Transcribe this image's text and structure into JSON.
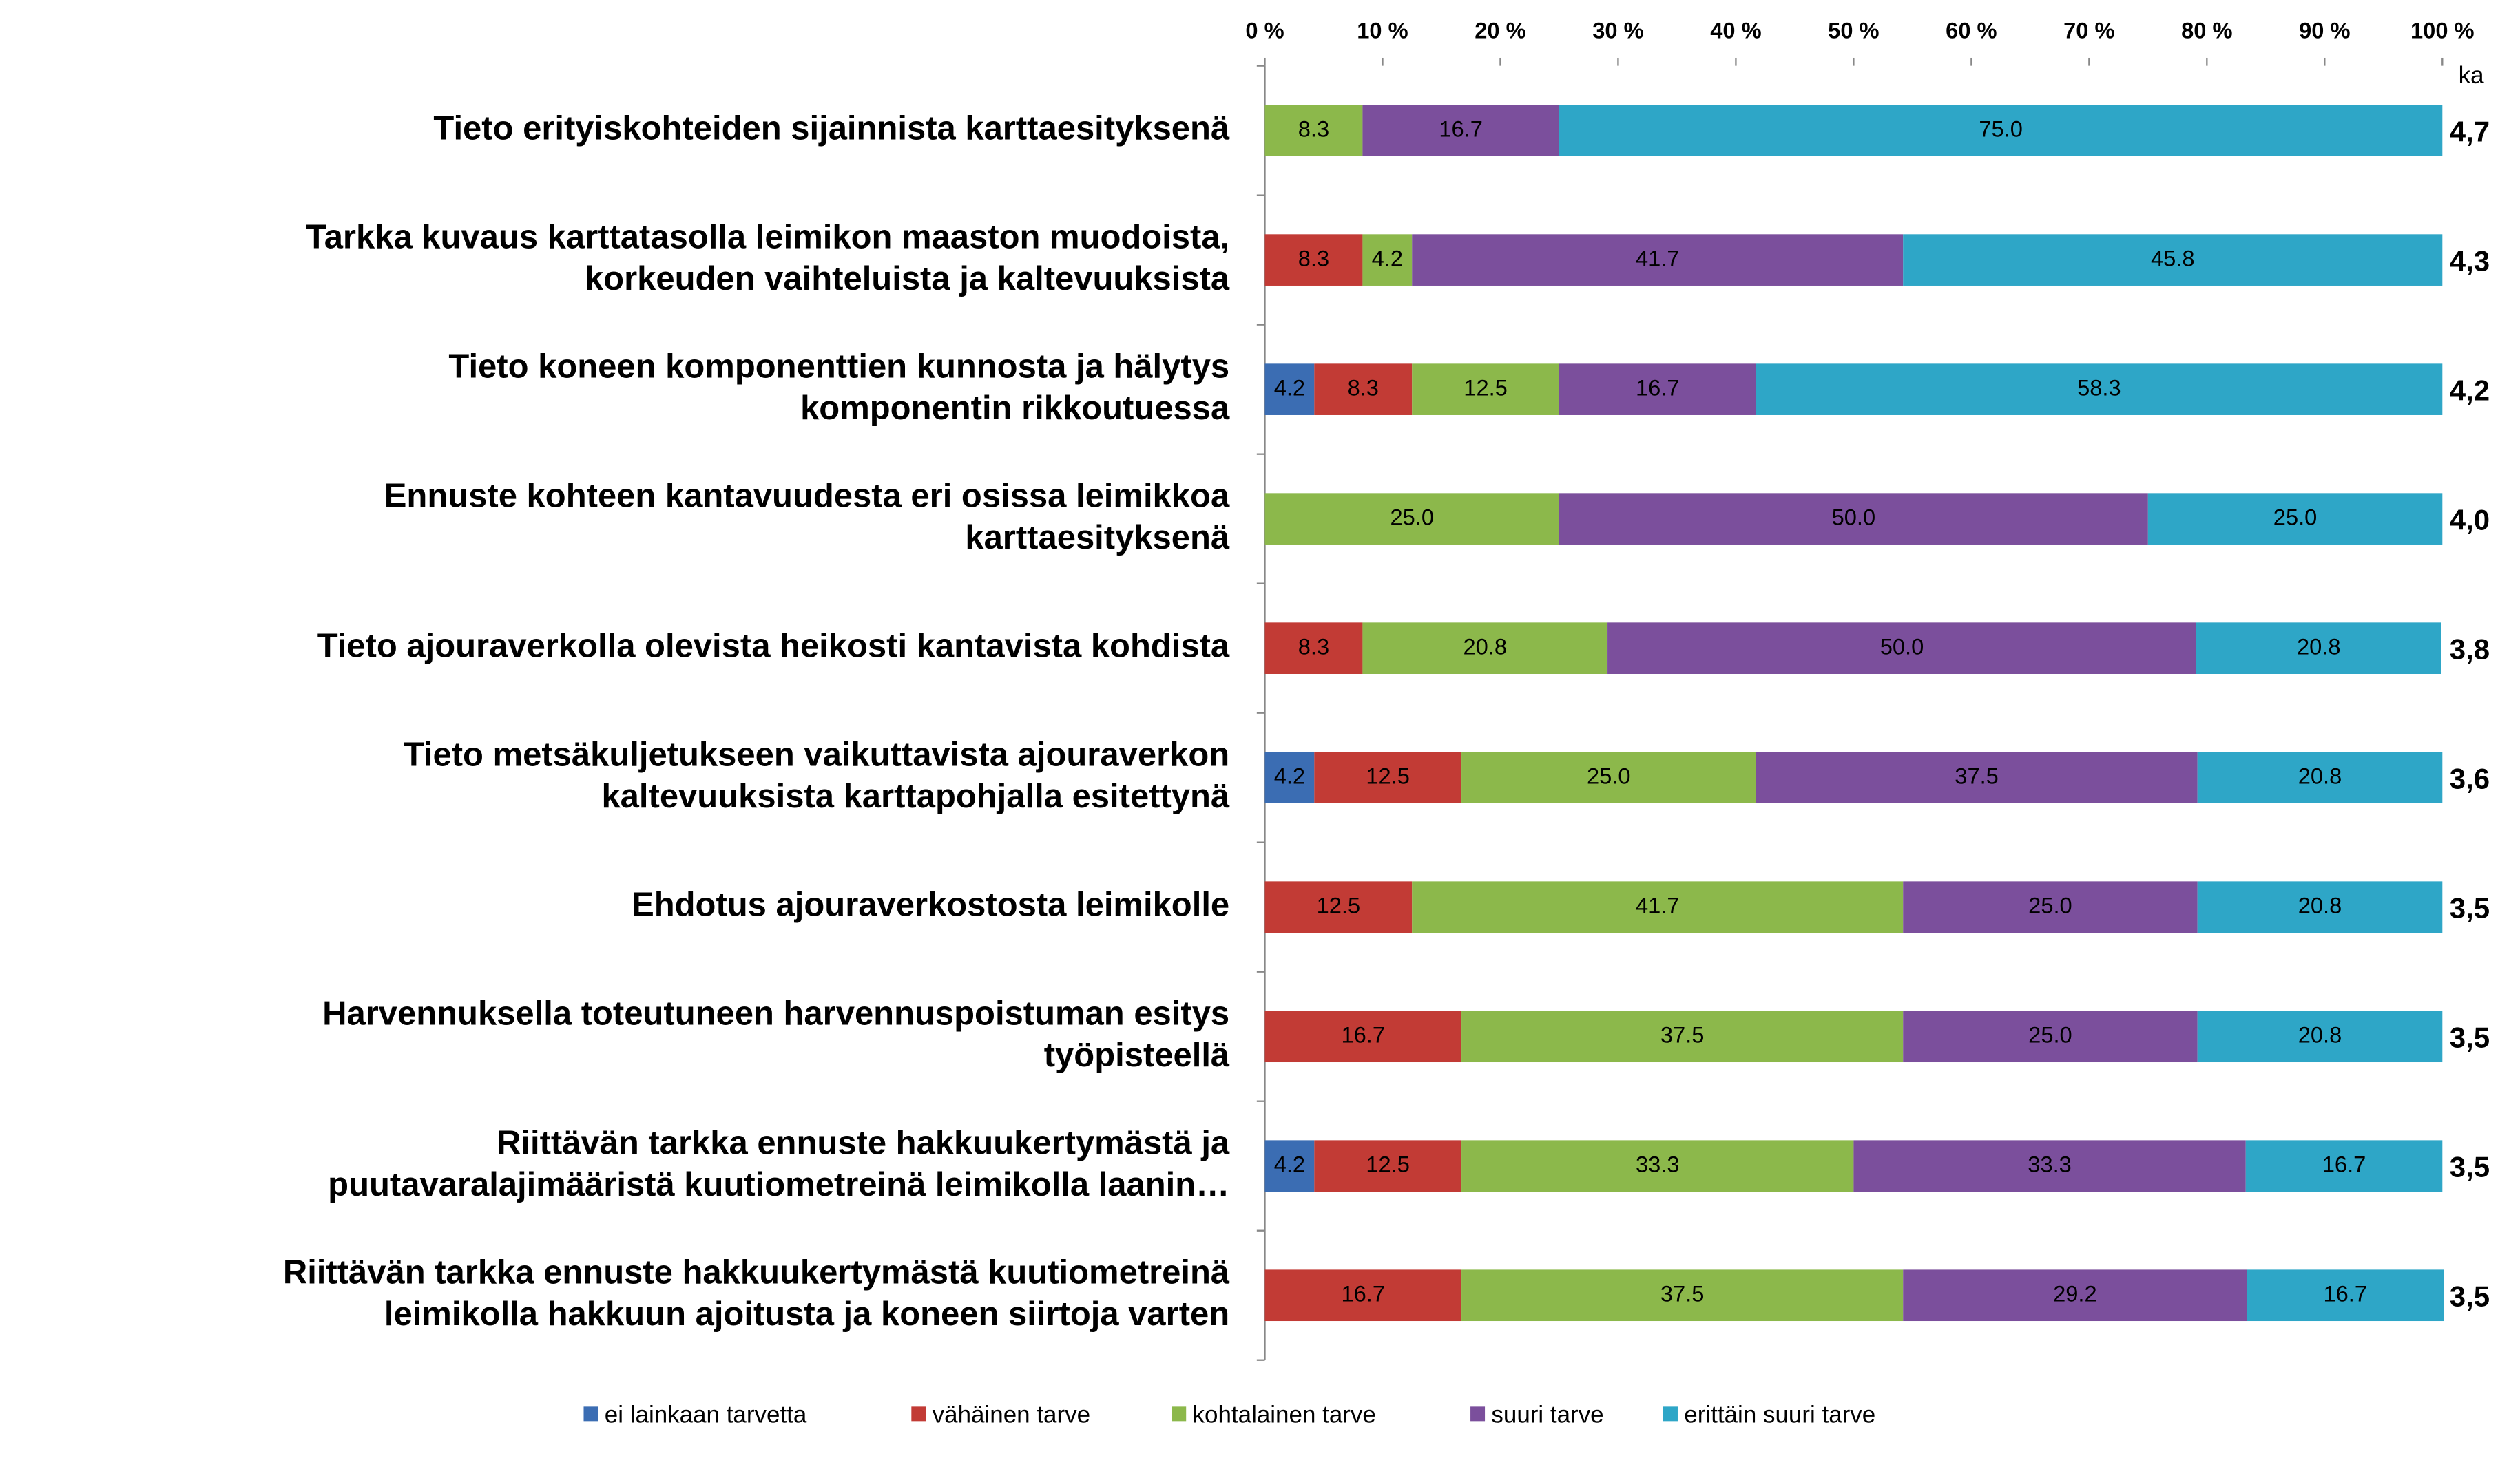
{
  "chart_data": {
    "type": "stacked-bar-horizontal",
    "categories": [
      "Tieto erityiskohteiden sijainnista karttaesityksenä",
      "Tarkka kuvaus karttatasolla leimikon maaston muodoista,\nkorkeuden vaihteluista ja kaltevuuksista",
      "Tieto koneen komponenttien kunnosta ja hälytys\nkomponentin rikkoutuessa",
      "Ennuste kohteen kantavuudesta eri osissa leimikkoa\nkarttaesityksenä",
      "Tieto ajouraverkolla olevista heikosti kantavista kohdista",
      "Tieto metsäkuljetukseen vaikuttavista ajouraverkon\nkaltevuuksista karttapohjalla esitettynä",
      "Ehdotus ajouraverkostosta leimikolle",
      "Harvennuksella toteutuneen harvennuspoistuman esitys\ntyöpisteellä",
      "Riittävän tarkka ennuste hakkuukertymästä ja\npuutavaralajimääristä kuutiometreinä leimikolla laanin…",
      "Riittävän tarkka ennuste hakkuukertymästä kuutiometreinä\nleimikolla hakkuun ajoitusta ja koneen siirtoja varten"
    ],
    "series": [
      {
        "name": "ei lainkaan tarvetta",
        "color": "#3b6db3",
        "values": [
          null,
          null,
          4.2,
          null,
          null,
          4.2,
          null,
          null,
          4.2,
          null
        ],
        "value_labels": [
          null,
          null,
          "4.2",
          null,
          null,
          "4.2",
          null,
          null,
          "4.2",
          null
        ]
      },
      {
        "name": "vähäinen tarve",
        "color": "#c23b35",
        "values": [
          null,
          8.3,
          8.3,
          null,
          8.3,
          12.5,
          12.5,
          16.7,
          12.5,
          16.7
        ],
        "value_labels": [
          null,
          "8.3",
          "8.3",
          null,
          "8.3",
          "12.5",
          "12.5",
          "16.7",
          "12.5",
          "16.7"
        ]
      },
      {
        "name": "kohtalainen tarve",
        "color": "#8cb84b",
        "values": [
          8.3,
          4.2,
          12.5,
          25.0,
          20.8,
          25.0,
          41.7,
          37.5,
          33.3,
          37.5
        ],
        "value_labels": [
          "8.3",
          "4.2",
          "12.5",
          "25.0",
          "20.8",
          "25.0",
          "41.7",
          "37.5",
          "33.3",
          "37.5"
        ]
      },
      {
        "name": "suuri tarve",
        "color": "#7b4f9c",
        "values": [
          16.7,
          41.7,
          16.7,
          50.0,
          50.0,
          37.5,
          25.0,
          25.0,
          33.3,
          29.2
        ],
        "value_labels": [
          "16.7",
          "41.7",
          "16.7",
          "50.0",
          "50.0",
          "37.5",
          "25.0",
          "25.0",
          "33.3",
          "29.2"
        ]
      },
      {
        "name": "erittäin suuri tarve",
        "color": "#2ea6c7",
        "values": [
          75.0,
          45.8,
          58.3,
          25.0,
          20.8,
          20.8,
          20.8,
          20.8,
          16.7,
          16.7
        ],
        "value_labels": [
          "75.0",
          "45.8",
          "58.3",
          "25.0",
          "20.8",
          "20.8",
          "20.8",
          "20.8",
          "16.7",
          "16.7"
        ]
      }
    ],
    "xlim": [
      0,
      100
    ],
    "xticks": [
      {
        "value": 0,
        "label": "0 %"
      },
      {
        "value": 10,
        "label": "10 %"
      },
      {
        "value": 20,
        "label": "20 %"
      },
      {
        "value": 30,
        "label": "30 %"
      },
      {
        "value": 40,
        "label": "40 %"
      },
      {
        "value": 50,
        "label": "50 %"
      },
      {
        "value": 60,
        "label": "60 %"
      },
      {
        "value": 70,
        "label": "70 %"
      },
      {
        "value": 80,
        "label": "80 %"
      },
      {
        "value": 90,
        "label": "90 %"
      },
      {
        "value": 100,
        "label": "100 %"
      }
    ],
    "ka_header": "ka",
    "ka_labels": [
      "4,7",
      "4,3",
      "4,2",
      "4,0",
      "3,8",
      "3,6",
      "3,5",
      "3,5",
      "3,5",
      "3,5"
    ],
    "legend": "bottom"
  }
}
